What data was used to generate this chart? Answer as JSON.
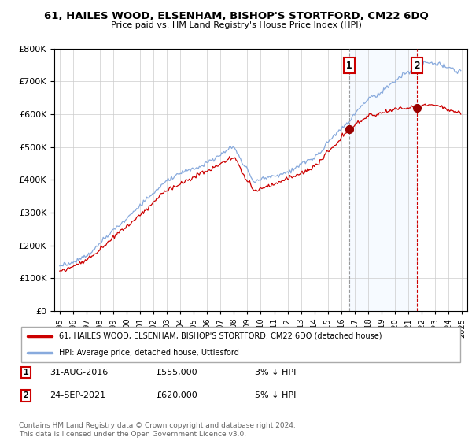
{
  "title": "61, HAILES WOOD, ELSENHAM, BISHOP'S STORTFORD, CM22 6DQ",
  "subtitle": "Price paid vs. HM Land Registry's House Price Index (HPI)",
  "legend_line1": "61, HAILES WOOD, ELSENHAM, BISHOP'S STORTFORD, CM22 6DQ (detached house)",
  "legend_line2": "HPI: Average price, detached house, Uttlesford",
  "annotation1_label": "1",
  "annotation1_date": "31-AUG-2016",
  "annotation1_price": "£555,000",
  "annotation1_note": "3% ↓ HPI",
  "annotation2_label": "2",
  "annotation2_date": "24-SEP-2021",
  "annotation2_price": "£620,000",
  "annotation2_note": "5% ↓ HPI",
  "footnote": "Contains HM Land Registry data © Crown copyright and database right 2024.\nThis data is licensed under the Open Government Licence v3.0.",
  "line_color_red": "#cc0000",
  "line_color_blue": "#88aadd",
  "vline1_color": "#999999",
  "vline2_color": "#cc0000",
  "shade_color": "#ddeeff",
  "annotation_box_color": "#cc0000",
  "ylim_min": 0,
  "ylim_max": 800000,
  "ytick_step": 100000,
  "xstart": 1995,
  "xend": 2025
}
